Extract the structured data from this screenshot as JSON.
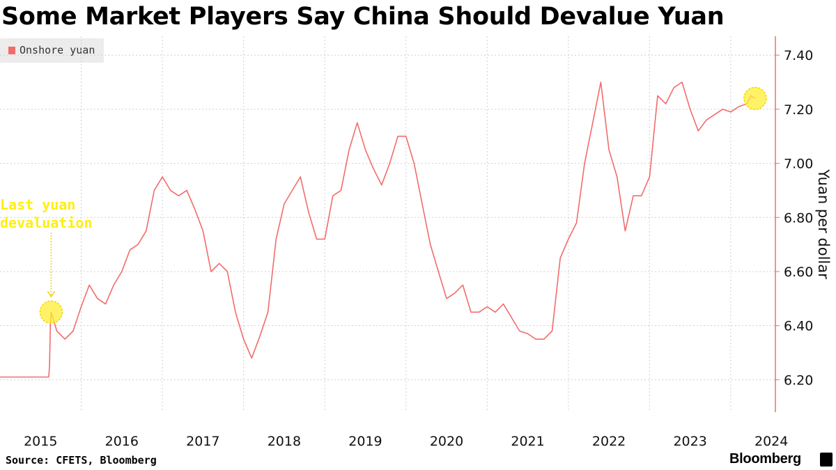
{
  "title": "Some Market Players Say China Should Devalue Yuan",
  "legend": {
    "label": "Onshore yuan"
  },
  "annotation": {
    "line1": "Last yuan",
    "line2": "devaluation"
  },
  "source": "Source: CFETS, Bloomberg",
  "brand": "Bloomberg",
  "colors": {
    "series": "#f26b6b",
    "highlight_fill": "#ffee33",
    "highlight_stroke": "#f2d600",
    "annotation_text": "#ffee11",
    "grid": "#cfcfcf",
    "axis": "#f26b6b"
  },
  "chart_data": {
    "type": "line",
    "title": "Some Market Players Say China Should Devalue Yuan",
    "xlabel": "",
    "ylabel": "Yuan per dollar",
    "ylim": [
      6.08,
      7.47
    ],
    "xlim": [
      2015.0,
      2024.55
    ],
    "x_ticks": [
      2015,
      2016,
      2017,
      2018,
      2019,
      2020,
      2021,
      2022,
      2023,
      2024
    ],
    "x_tick_labels": [
      "2015",
      "2016",
      "2017",
      "2018",
      "2019",
      "2020",
      "2021",
      "2022",
      "2023",
      "2024"
    ],
    "y_ticks": [
      6.2,
      6.4,
      6.6,
      6.8,
      7.0,
      7.2,
      7.4
    ],
    "y_tick_labels": [
      "6.20",
      "6.40",
      "6.60",
      "6.80",
      "7.00",
      "7.20",
      "7.40"
    ],
    "grid": true,
    "y_axis_position": "right",
    "series": [
      {
        "name": "Onshore yuan",
        "x": [
          2015.0,
          2015.1,
          2015.2,
          2015.3,
          2015.4,
          2015.5,
          2015.6,
          2015.61,
          2015.62,
          2015.63,
          2015.7,
          2015.8,
          2015.9,
          2016.0,
          2016.1,
          2016.2,
          2016.3,
          2016.4,
          2016.5,
          2016.6,
          2016.7,
          2016.8,
          2016.9,
          2017.0,
          2017.1,
          2017.2,
          2017.3,
          2017.4,
          2017.5,
          2017.6,
          2017.7,
          2017.8,
          2017.9,
          2018.0,
          2018.1,
          2018.2,
          2018.3,
          2018.4,
          2018.5,
          2018.6,
          2018.7,
          2018.8,
          2018.9,
          2019.0,
          2019.1,
          2019.2,
          2019.3,
          2019.4,
          2019.5,
          2019.6,
          2019.7,
          2019.8,
          2019.9,
          2020.0,
          2020.1,
          2020.2,
          2020.3,
          2020.4,
          2020.5,
          2020.6,
          2020.7,
          2020.8,
          2020.9,
          2021.0,
          2021.1,
          2021.2,
          2021.3,
          2021.4,
          2021.5,
          2021.6,
          2021.7,
          2021.8,
          2021.9,
          2022.0,
          2022.1,
          2022.2,
          2022.3,
          2022.4,
          2022.5,
          2022.6,
          2022.7,
          2022.8,
          2022.9,
          2023.0,
          2023.1,
          2023.2,
          2023.3,
          2023.4,
          2023.5,
          2023.6,
          2023.7,
          2023.8,
          2023.9,
          2024.0,
          2024.1,
          2024.2,
          2024.25,
          2024.3
        ],
        "values": [
          6.21,
          6.21,
          6.21,
          6.21,
          6.21,
          6.21,
          6.21,
          6.25,
          6.4,
          6.45,
          6.38,
          6.35,
          6.38,
          6.47,
          6.55,
          6.5,
          6.48,
          6.55,
          6.6,
          6.68,
          6.7,
          6.75,
          6.9,
          6.95,
          6.9,
          6.88,
          6.9,
          6.83,
          6.75,
          6.6,
          6.63,
          6.6,
          6.45,
          6.35,
          6.28,
          6.36,
          6.45,
          6.72,
          6.85,
          6.9,
          6.95,
          6.82,
          6.72,
          6.72,
          6.88,
          6.9,
          7.05,
          7.15,
          7.05,
          6.98,
          6.92,
          7.0,
          7.1,
          7.1,
          7.0,
          6.85,
          6.7,
          6.6,
          6.5,
          6.52,
          6.55,
          6.45,
          6.45,
          6.47,
          6.45,
          6.48,
          6.43,
          6.38,
          6.37,
          6.35,
          6.35,
          6.38,
          6.65,
          6.72,
          6.78,
          7.0,
          7.15,
          7.3,
          7.05,
          6.95,
          6.75,
          6.88,
          6.88,
          6.95,
          7.25,
          7.22,
          7.28,
          7.3,
          7.2,
          7.12,
          7.16,
          7.18,
          7.2,
          7.19,
          7.21,
          7.22,
          7.25,
          7.24
        ]
      }
    ],
    "annotations": [
      {
        "label": "Last yuan devaluation",
        "x": 2015.63,
        "y": 6.45
      },
      {
        "label": "",
        "x": 2024.3,
        "y": 7.24
      }
    ]
  }
}
